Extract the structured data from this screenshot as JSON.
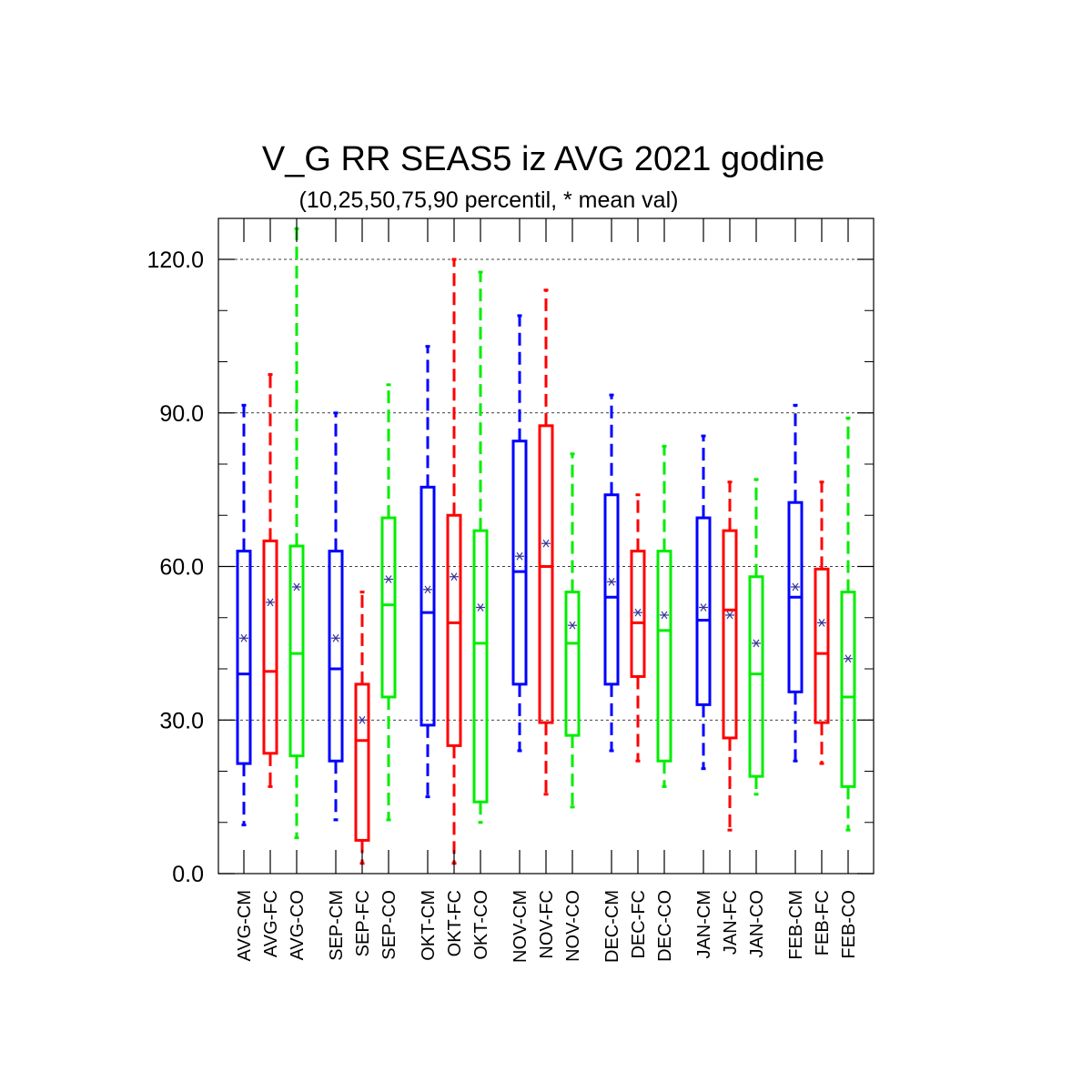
{
  "chart_data": {
    "type": "boxplot",
    "title": "V_G RR SEAS5 iz AVG 2021 godine",
    "subtitle": "(10,25,50,75,90 percentil, * mean val)",
    "ylim": [
      0,
      128
    ],
    "yticks": [
      {
        "value": 0,
        "label": "0.0"
      },
      {
        "value": 30,
        "label": "30.0"
      },
      {
        "value": 60,
        "label": "60.0"
      },
      {
        "value": 90,
        "label": "90.0"
      },
      {
        "value": 120,
        "label": "120.0"
      }
    ],
    "grid": "horizontal dashed at major ticks",
    "colors": {
      "CM": "#0000ff",
      "FC": "#ff0000",
      "CO": "#00ee00",
      "mean": "#333399"
    },
    "boxes": [
      {
        "label": "AVG-CM",
        "group": "CM",
        "p10": 9.5,
        "p25": 21.5,
        "p50": 39.0,
        "p75": 63.0,
        "p90": 91.5,
        "mean": 46.0
      },
      {
        "label": "AVG-FC",
        "group": "FC",
        "p10": 17.0,
        "p25": 23.5,
        "p50": 39.5,
        "p75": 65.0,
        "p90": 97.5,
        "mean": 53.0
      },
      {
        "label": "AVG-CO",
        "group": "CO",
        "p10": 7.0,
        "p25": 23.0,
        "p50": 43.0,
        "p75": 64.0,
        "p90": 126.0,
        "mean": 56.0
      },
      {
        "label": "SEP-CM",
        "group": "CM",
        "p10": 10.5,
        "p25": 22.0,
        "p50": 40.0,
        "p75": 63.0,
        "p90": 90.0,
        "mean": 46.0
      },
      {
        "label": "SEP-FC",
        "group": "FC",
        "p10": 2.0,
        "p25": 6.5,
        "p50": 26.0,
        "p75": 37.0,
        "p90": 55.0,
        "mean": 30.0
      },
      {
        "label": "SEP-CO",
        "group": "CO",
        "p10": 10.5,
        "p25": 34.5,
        "p50": 52.5,
        "p75": 69.5,
        "p90": 95.5,
        "mean": 57.5
      },
      {
        "label": "OKT-CM",
        "group": "CM",
        "p10": 15.0,
        "p25": 29.0,
        "p50": 51.0,
        "p75": 75.5,
        "p90": 103.0,
        "mean": 55.5
      },
      {
        "label": "OKT-FC",
        "group": "FC",
        "p10": 2.0,
        "p25": 25.0,
        "p50": 49.0,
        "p75": 70.0,
        "p90": 120.0,
        "mean": 58.0
      },
      {
        "label": "OKT-CO",
        "group": "CO",
        "p10": 10.0,
        "p25": 14.0,
        "p50": 45.0,
        "p75": 67.0,
        "p90": 117.5,
        "mean": 52.0
      },
      {
        "label": "NOV-CM",
        "group": "CM",
        "p10": 24.0,
        "p25": 37.0,
        "p50": 59.0,
        "p75": 84.5,
        "p90": 109.0,
        "mean": 62.0
      },
      {
        "label": "NOV-FC",
        "group": "FC",
        "p10": 15.5,
        "p25": 29.5,
        "p50": 60.0,
        "p75": 87.5,
        "p90": 114.0,
        "mean": 64.5
      },
      {
        "label": "NOV-CO",
        "group": "CO",
        "p10": 13.0,
        "p25": 27.0,
        "p50": 45.0,
        "p75": 55.0,
        "p90": 82.0,
        "mean": 48.5
      },
      {
        "label": "DEC-CM",
        "group": "CM",
        "p10": 24.0,
        "p25": 37.0,
        "p50": 54.0,
        "p75": 74.0,
        "p90": 93.5,
        "mean": 57.0
      },
      {
        "label": "DEC-FC",
        "group": "FC",
        "p10": 22.0,
        "p25": 38.5,
        "p50": 49.0,
        "p75": 63.0,
        "p90": 74.0,
        "mean": 51.0
      },
      {
        "label": "DEC-CO",
        "group": "CO",
        "p10": 17.0,
        "p25": 22.0,
        "p50": 47.5,
        "p75": 63.0,
        "p90": 83.5,
        "mean": 50.5
      },
      {
        "label": "JAN-CM",
        "group": "CM",
        "p10": 20.5,
        "p25": 33.0,
        "p50": 49.5,
        "p75": 69.5,
        "p90": 85.5,
        "mean": 52.0
      },
      {
        "label": "JAN-FC",
        "group": "FC",
        "p10": 8.5,
        "p25": 26.5,
        "p50": 51.5,
        "p75": 67.0,
        "p90": 76.5,
        "mean": 50.5
      },
      {
        "label": "JAN-CO",
        "group": "CO",
        "p10": 15.5,
        "p25": 19.0,
        "p50": 39.0,
        "p75": 58.0,
        "p90": 77.0,
        "mean": 45.0
      },
      {
        "label": "FEB-CM",
        "group": "CM",
        "p10": 22.0,
        "p25": 35.5,
        "p50": 54.0,
        "p75": 72.5,
        "p90": 91.5,
        "mean": 56.0
      },
      {
        "label": "FEB-FC",
        "group": "FC",
        "p10": 21.5,
        "p25": 29.5,
        "p50": 43.0,
        "p75": 59.5,
        "p90": 76.5,
        "mean": 49.0
      },
      {
        "label": "FEB-CO",
        "group": "CO",
        "p10": 8.5,
        "p25": 17.0,
        "p50": 34.5,
        "p75": 55.0,
        "p90": 89.0,
        "mean": 42.0
      }
    ]
  }
}
